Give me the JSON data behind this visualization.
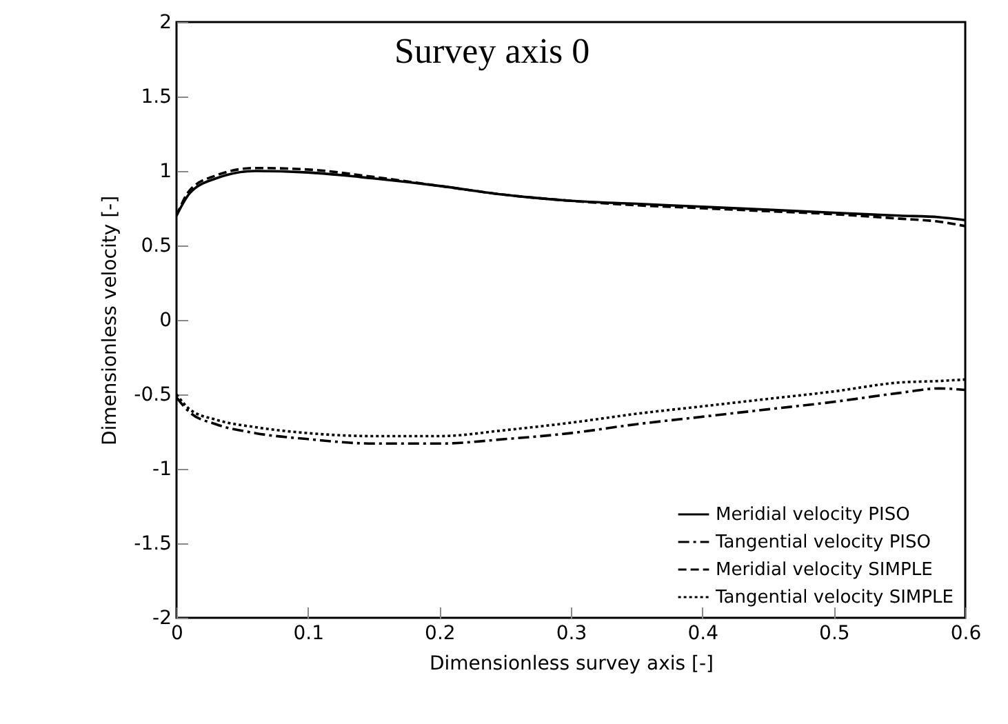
{
  "chart_data": {
    "type": "line",
    "title": "Survey axis 0",
    "xlabel": "Dimensionless survey axis [-]",
    "ylabel": "Dimensionless velocity [-]",
    "x": [
      0,
      0.01,
      0.03,
      0.06,
      0.1,
      0.15,
      0.2,
      0.25,
      0.3,
      0.35,
      0.4,
      0.45,
      0.5,
      0.55,
      0.58,
      0.6
    ],
    "series": [
      {
        "name": "Meridial velocity PISO",
        "color": "#000000",
        "line_style": "solid",
        "values": [
          0.7,
          0.85,
          0.95,
          1.0,
          0.99,
          0.95,
          0.9,
          0.84,
          0.8,
          0.78,
          0.76,
          0.74,
          0.72,
          0.7,
          0.69,
          0.67
        ]
      },
      {
        "name": "Tangential velocity PISO",
        "color": "#000000",
        "line_style": "dashed",
        "values": [
          -0.52,
          -0.62,
          -0.7,
          -0.76,
          -0.8,
          -0.83,
          -0.83,
          -0.8,
          -0.76,
          -0.7,
          -0.65,
          -0.6,
          -0.55,
          -0.49,
          -0.46,
          -0.47
        ]
      },
      {
        "name": "Meridial velocity SIMPLE",
        "color": "#000000",
        "line_style": "dashed",
        "values": [
          0.7,
          0.87,
          0.97,
          1.02,
          1.01,
          0.96,
          0.9,
          0.84,
          0.8,
          0.77,
          0.75,
          0.73,
          0.71,
          0.68,
          0.66,
          0.63
        ]
      },
      {
        "name": "Tangential velocity SIMPLE",
        "color": "#000000",
        "line_style": "dotted",
        "values": [
          -0.5,
          -0.6,
          -0.67,
          -0.72,
          -0.76,
          -0.78,
          -0.78,
          -0.74,
          -0.69,
          -0.63,
          -0.58,
          -0.53,
          -0.48,
          -0.42,
          -0.41,
          -0.4
        ]
      }
    ],
    "xlim": [
      0,
      0.6
    ],
    "xticks": [
      0,
      0.1,
      0.2,
      0.3,
      0.4,
      0.5,
      0.6
    ],
    "ylim": [
      -2,
      2
    ],
    "yticks": [
      -2,
      -1.5,
      -1,
      -0.5,
      0,
      0.5,
      1,
      1.5,
      2
    ],
    "grid": false,
    "legend": "bottom right"
  }
}
